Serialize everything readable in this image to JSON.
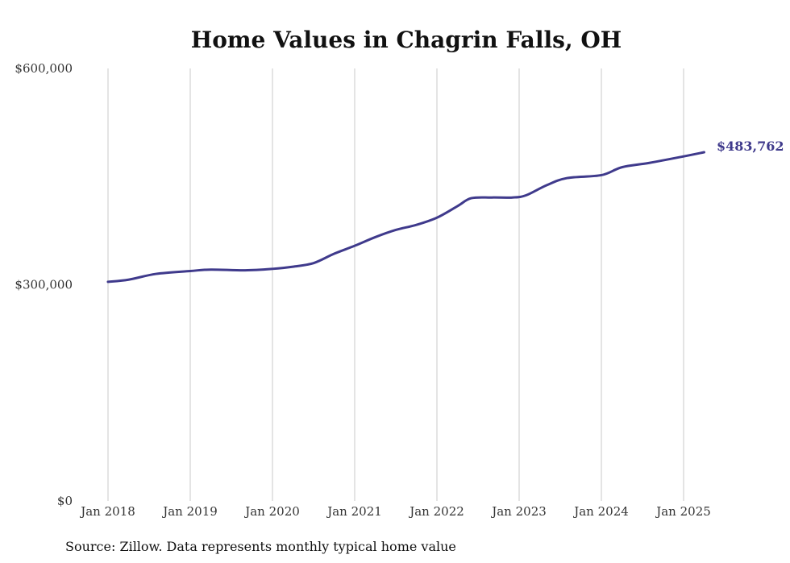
{
  "chart_data": {
    "type": "line",
    "title": "Home Values in Chagrin Falls, OH",
    "source": "Source: Zillow. Data represents monthly typical home value",
    "ylim": [
      0,
      600000
    ],
    "y_ticks": [
      {
        "value": 0,
        "label": "$0"
      },
      {
        "value": 300000,
        "label": "$300,000"
      },
      {
        "value": 600000,
        "label": "$600,000"
      }
    ],
    "x_ticks": [
      {
        "value": "2018-01",
        "label": "Jan 2018"
      },
      {
        "value": "2019-01",
        "label": "Jan 2019"
      },
      {
        "value": "2020-01",
        "label": "Jan 2020"
      },
      {
        "value": "2021-01",
        "label": "Jan 2021"
      },
      {
        "value": "2022-01",
        "label": "Jan 2022"
      },
      {
        "value": "2023-01",
        "label": "Jan 2023"
      },
      {
        "value": "2024-01",
        "label": "Jan 2024"
      },
      {
        "value": "2025-01",
        "label": "Jan 2025"
      }
    ],
    "grid": "vertical",
    "line_color": "#3f3a8c",
    "end_label": "$483,762",
    "series": [
      {
        "x": [
          "2018-01",
          "2018-04",
          "2018-08",
          "2019-01",
          "2019-04",
          "2019-09",
          "2020-01",
          "2020-04",
          "2020-07",
          "2020-10",
          "2021-01",
          "2021-04",
          "2021-07",
          "2021-10",
          "2022-01",
          "2022-04",
          "2022-06",
          "2022-09",
          "2022-12",
          "2023-02",
          "2023-05",
          "2023-08",
          "2024-01",
          "2024-04",
          "2024-08",
          "2025-01",
          "2025-04"
        ],
        "y": [
          304000,
          307000,
          315000,
          319000,
          321000,
          320000,
          322000,
          325000,
          330000,
          343000,
          354000,
          366000,
          376000,
          383000,
          393000,
          409000,
          420000,
          421000,
          421000,
          424000,
          438000,
          448000,
          452000,
          463000,
          469000,
          478000,
          483762
        ]
      }
    ]
  }
}
